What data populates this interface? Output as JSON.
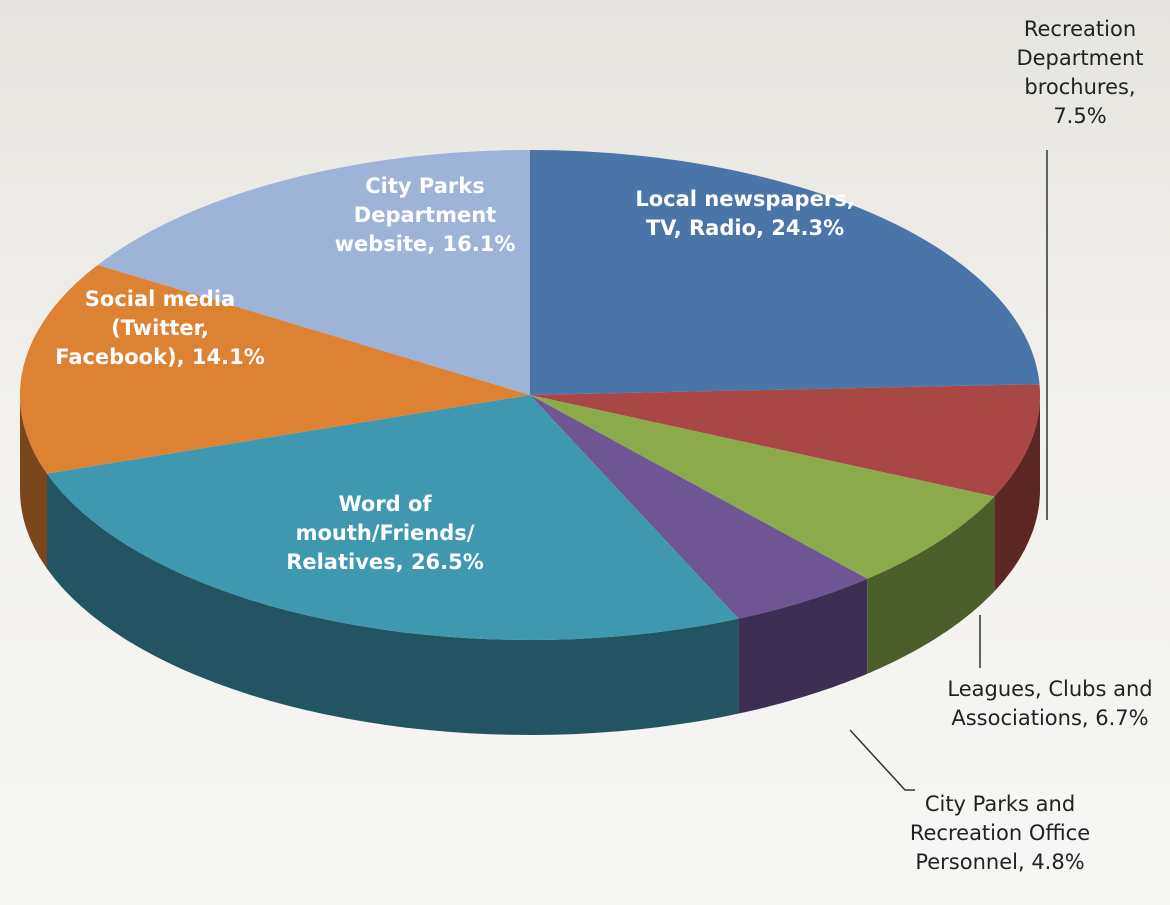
{
  "chart_data": {
    "type": "pie3d",
    "categories": [
      "Local newspapers, TV, Radio,",
      "Recreation Department brochures,",
      "Leagues, Clubs and Associations,",
      "City Parks and Recreation Office Personnel,",
      "Word of mouth/Friends/ Relatives,",
      "Social media (Twitter, Facebook),",
      "City Parks Department website,"
    ],
    "values": [
      24.3,
      7.5,
      6.7,
      4.8,
      26.5,
      14.1,
      16.1
    ],
    "value_labels": [
      "24.3%",
      "7.5%",
      "6.7%",
      "4.8%",
      "26.5%",
      "14.1%",
      "16.1%"
    ],
    "colors": [
      "#4a75a8",
      "#a84744",
      "#8aaa4c",
      "#6e5594",
      "#3f98b0",
      "#dd8133",
      "#9db3d8"
    ]
  }
}
